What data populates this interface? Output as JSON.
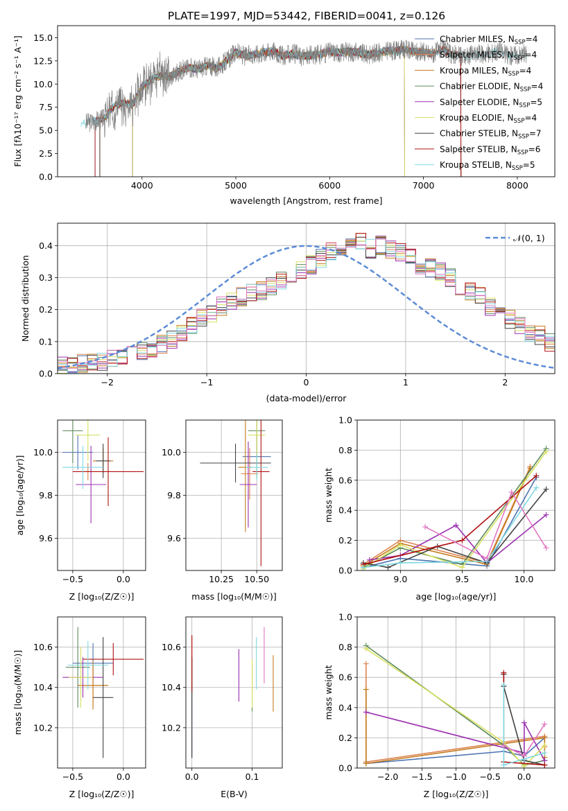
{
  "figure_title": "PLATE=1997, MJD=53442, FIBERID=0041, z=0.126",
  "palette": [
    "#4c72b0",
    "#dd8452",
    "#c47a1a",
    "#5b8a5b",
    "#9b30b0",
    "#d8e060",
    "#404040",
    "#b01010",
    "#7fd8e0"
  ],
  "chart_data": [
    {
      "id": "spectrum",
      "type": "line",
      "title": "PLATE=1997, MJD=53442, FIBERID=0041, z=0.126",
      "xlabel": "wavelength [Angstrom, rest frame]",
      "ylabel": "Flux [f$_\\lambda$10$^{-17}$ erg cm$^{-2}$ s$^{-1}$ A$^{-1}$]",
      "ylabel_display": "Flux [fλ10⁻¹⁷ erg cm⁻² s⁻¹ A⁻¹]",
      "xlim": [
        3100,
        8400
      ],
      "ylim": [
        0,
        16.3
      ],
      "xticks": [
        4000,
        5000,
        6000,
        7000,
        8000
      ],
      "yticks": [
        0.0,
        2.5,
        5.0,
        7.5,
        10.0,
        12.5,
        15.0
      ],
      "ytick_labels": [
        "0.0",
        "2.5",
        "5.0",
        "7.5",
        "10.0",
        "12.5",
        "15.0"
      ],
      "grid": false,
      "legend_position": "upper-right",
      "data_series": {
        "name": "data",
        "color": "#808080",
        "x": [
          3400,
          3500,
          3600,
          3700,
          3800,
          3900,
          4000,
          4100,
          4200,
          4300,
          4400,
          4500,
          4600,
          4700,
          4800,
          4900,
          5000,
          5100,
          5200,
          5300,
          5400,
          5500,
          5600,
          5700,
          5800,
          5900,
          6000,
          6100,
          6200,
          6300,
          6400,
          6500,
          6600,
          6700,
          6800,
          6900,
          7000,
          7100,
          7200,
          7300,
          7400,
          7500,
          7600,
          7700,
          7800,
          7900,
          8000,
          8100
        ],
        "y": [
          5.8,
          6.0,
          6.3,
          7.6,
          8.0,
          7.8,
          9.7,
          10.5,
          10.9,
          10.8,
          11.4,
          11.8,
          11.6,
          12.0,
          11.7,
          12.5,
          13.4,
          13.0,
          13.2,
          13.4,
          13.6,
          13.0,
          13.3,
          13.0,
          13.1,
          13.2,
          13.5,
          13.4,
          13.5,
          13.4,
          13.2,
          13.3,
          13.5,
          13.6,
          13.7,
          13.5,
          13.4,
          13.3,
          13.8,
          13.2,
          13.0,
          13.1,
          13.2,
          13.3,
          13.6,
          13.1,
          13.2,
          13.2
        ]
      },
      "series": [
        {
          "name": "Chabrier MILES, N$_{SSP}$=4",
          "label": "Chabrier MILES, N",
          "sub": "SSP",
          "tail": "=4",
          "color": "#4c72b0",
          "range": [
            3500,
            7400
          ]
        },
        {
          "name": "Salpeter MILES, N$_{SSP}$=4",
          "label": "Salpeter MILES, N",
          "sub": "SSP",
          "tail": "=4",
          "color": "#dd8452",
          "range": [
            3550,
            7400
          ]
        },
        {
          "name": "Kroupa MILES, N$_{SSP}$=4",
          "label": "Kroupa MILES, N",
          "sub": "SSP",
          "tail": "=4",
          "color": "#c47a1a",
          "range": [
            3550,
            7400
          ]
        },
        {
          "name": "Chabrier ELODIE, N$_{SSP}$=4",
          "label": "Chabrier ELODIE, N",
          "sub": "SSP",
          "tail": "=4",
          "color": "#5b8a5b",
          "range": [
            3900,
            6800
          ]
        },
        {
          "name": "Salpeter ELODIE, N$_{SSP}$=5",
          "label": "Salpeter ELODIE, N",
          "sub": "SSP",
          "tail": "=5",
          "color": "#9b30b0",
          "range": [
            3900,
            6800
          ]
        },
        {
          "name": "Kroupa ELODIE, N$_{SSP}$=4",
          "label": "Kroupa ELODIE, N",
          "sub": "SSP",
          "tail": "=4",
          "color": "#d8e060",
          "range": [
            3900,
            6800
          ]
        },
        {
          "name": "Chabrier STELIB, N$_{SSP}$=7",
          "label": "Chabrier STELIB, N",
          "sub": "SSP",
          "tail": "=7",
          "color": "#404040",
          "range": [
            3550,
            7400
          ]
        },
        {
          "name": "Salpeter STELIB, N$_{SSP}$=6",
          "label": "Salpeter STELIB, N",
          "sub": "SSP",
          "tail": "=6",
          "color": "#b01010",
          "range": [
            3500,
            7400
          ]
        },
        {
          "name": "Kroupa STELIB, N$_{SSP}$=5",
          "label": "Kroupa STELIB, N",
          "sub": "SSP",
          "tail": "=5",
          "color": "#7fd8e0",
          "range": [
            3350,
            8100
          ]
        }
      ]
    },
    {
      "id": "residuals",
      "type": "line",
      "xlabel": "(data-model)/error",
      "ylabel": "Normed distribution",
      "xlim": [
        -2.5,
        2.5
      ],
      "ylim": [
        0,
        0.47
      ],
      "xticks": [
        -2,
        -1,
        0,
        1,
        2
      ],
      "xtick_labels": [
        "−2",
        "−1",
        "0",
        "1",
        "2"
      ],
      "yticks": [
        0.0,
        0.1,
        0.2,
        0.3,
        0.4
      ],
      "ytick_labels": [
        "0.0",
        "0.1",
        "0.2",
        "0.3",
        "0.4"
      ],
      "grid": true,
      "legend_position": "upper-right",
      "reference_curve": {
        "name": "$\\mathcal{N}(0,1)$",
        "label_display": "𝒩(0, 1)",
        "color": "#5b8bd6",
        "style": "dashed"
      },
      "bin_edges_min": -2.5,
      "bin_width": 0.1,
      "base_histogram": [
        0.03,
        0.028,
        0.032,
        0.035,
        0.038,
        0.045,
        0.05,
        0.058,
        0.068,
        0.08,
        0.09,
        0.108,
        0.128,
        0.15,
        0.175,
        0.19,
        0.21,
        0.23,
        0.24,
        0.25,
        0.26,
        0.27,
        0.29,
        0.31,
        0.32,
        0.34,
        0.36,
        0.38,
        0.38,
        0.4,
        0.41,
        0.39,
        0.4,
        0.39,
        0.38,
        0.36,
        0.34,
        0.33,
        0.32,
        0.3,
        0.27,
        0.26,
        0.24,
        0.21,
        0.19,
        0.17,
        0.15,
        0.13,
        0.12,
        0.1,
        0.09,
        0.08,
        0.07,
        0.065,
        0.055,
        0.05,
        0.04,
        0.035,
        0.03,
        0.025
      ]
    },
    {
      "id": "age_vs_Z",
      "type": "scatter",
      "xlabel": "Z [log$_{10}$(Z/Z$_\\odot$)]",
      "xlabel_display": "Z [log₁₀(Z/Z☉)]",
      "ylabel": "age  [log$_{10}$(age/yr)]",
      "ylabel_display": "age  [log₁₀(age/yr)]",
      "xlim": [
        -0.65,
        0.22
      ],
      "ylim": [
        9.45,
        10.15
      ],
      "xticks": [
        -0.5,
        0.0
      ],
      "xtick_labels": [
        "−0.5",
        "0.0"
      ],
      "yticks": [
        9.6,
        9.8,
        10.0
      ],
      "ytick_labels": [
        "9.6",
        "9.8",
        "10.0"
      ],
      "grid": true,
      "errorbars": [
        {
          "x": -0.45,
          "xerr": 0.15,
          "y": 10.0,
          "yerr": 0.08
        },
        {
          "x": -0.35,
          "xerr": 0.12,
          "y": 9.91,
          "yerr": 0.04
        },
        {
          "x": -0.2,
          "xerr": 0.1,
          "y": 9.96,
          "yerr": 0.06
        },
        {
          "x": -0.5,
          "xerr": 0.1,
          "y": 10.1,
          "yerr": 0.15
        },
        {
          "x": -0.32,
          "xerr": 0.15,
          "y": 9.85,
          "yerr": 0.18
        },
        {
          "x": -0.35,
          "xerr": 0.12,
          "y": 10.08,
          "yerr": 0.12
        },
        {
          "x": -0.2,
          "xerr": 0.07,
          "y": 9.96,
          "yerr": 0.08
        },
        {
          "x": -0.15,
          "xerr": 0.35,
          "y": 9.91,
          "yerr": 0.16
        },
        {
          "x": -0.4,
          "xerr": 0.2,
          "y": 9.93,
          "yerr": 0.1
        }
      ]
    },
    {
      "id": "age_vs_mass",
      "type": "scatter",
      "xlabel": "mass [log$_{10}$(M/M$_\\odot$)]",
      "xlabel_display": "mass [log₁₀(M/M☉)]",
      "xlim": [
        10.0,
        10.68
      ],
      "ylim": [
        9.45,
        10.15
      ],
      "xticks": [
        10.25,
        10.5
      ],
      "xtick_labels": [
        "10.25",
        "10.50"
      ],
      "yticks": [
        9.6,
        9.8,
        10.0
      ],
      "ytick_labels": [
        "9.6",
        "9.8",
        "10.0"
      ],
      "grid": true,
      "errorbars": [
        {
          "x": 10.5,
          "xerr": 0.1,
          "y": 9.98,
          "yerr": 0.1
        },
        {
          "x": 10.45,
          "xerr": 0.06,
          "y": 9.9,
          "yerr": 0.12
        },
        {
          "x": 10.42,
          "xerr": 0.05,
          "y": 9.93,
          "yerr": 0.3
        },
        {
          "x": 10.5,
          "xerr": 0.06,
          "y": 10.1,
          "yerr": 0.09
        },
        {
          "x": 10.44,
          "xerr": 0.06,
          "y": 9.85,
          "yerr": 0.2
        },
        {
          "x": 10.5,
          "xerr": 0.06,
          "y": 10.08,
          "yerr": 0.2
        },
        {
          "x": 10.35,
          "xerr": 0.25,
          "y": 9.95,
          "yerr": 0.09
        },
        {
          "x": 10.53,
          "xerr": 0.06,
          "y": 9.91,
          "yerr": 0.44
        },
        {
          "x": 10.5,
          "xerr": 0.08,
          "y": 9.93,
          "yerr": 0.06
        }
      ]
    },
    {
      "id": "weight_vs_age",
      "type": "line",
      "xlabel": "age  [log$_{10}$(age/yr)]",
      "xlabel_display": "age  [log₁₀(age/yr)]",
      "ylabel": "mass weight",
      "xlim": [
        8.65,
        10.25
      ],
      "ylim": [
        0,
        1.0
      ],
      "xticks": [
        9.0,
        9.5,
        10.0
      ],
      "xtick_labels": [
        "9.0",
        "9.5",
        "10.0"
      ],
      "yticks": [
        0.0,
        0.2,
        0.4,
        0.6,
        0.8,
        1.0
      ],
      "ytick_labels": [
        "0.0",
        "0.2",
        "0.4",
        "0.6",
        "0.8",
        "1.0"
      ],
      "grid": true,
      "series": [
        {
          "color": "#4c72b0",
          "x": [
            8.7,
            9.0,
            9.7,
            10.1
          ],
          "y": [
            0.02,
            0.08,
            0.03,
            0.62
          ]
        },
        {
          "color": "#dd8452",
          "x": [
            8.7,
            9.0,
            9.7,
            10.05
          ],
          "y": [
            0.04,
            0.2,
            0.05,
            0.69
          ]
        },
        {
          "color": "#c47a1a",
          "x": [
            8.7,
            9.0,
            9.7,
            10.05
          ],
          "y": [
            0.03,
            0.18,
            0.04,
            0.68
          ]
        },
        {
          "color": "#5b8a5b",
          "x": [
            8.7,
            9.0,
            9.5,
            10.18
          ],
          "y": [
            0.02,
            0.15,
            0.04,
            0.81
          ]
        },
        {
          "color": "#9b30b0",
          "x": [
            8.75,
            9.0,
            9.45,
            9.7,
            10.18
          ],
          "y": [
            0.07,
            0.1,
            0.3,
            0.05,
            0.37
          ]
        },
        {
          "color": "#d8e060",
          "x": [
            8.7,
            9.0,
            9.5,
            10.18
          ],
          "y": [
            0.01,
            0.17,
            0.02,
            0.79
          ]
        },
        {
          "color": "#404040",
          "x": [
            8.7,
            8.9,
            9.3,
            9.7,
            10.18
          ],
          "y": [
            0.05,
            0.02,
            0.16,
            0.05,
            0.54
          ]
        },
        {
          "color": "#b01010",
          "x": [
            8.7,
            9.5,
            10.1
          ],
          "y": [
            0.04,
            0.2,
            0.63
          ]
        },
        {
          "color": "#7fd8e0",
          "x": [
            8.7,
            9.0,
            9.7,
            10.1
          ],
          "y": [
            0.02,
            0.05,
            0.06,
            0.55
          ]
        },
        {
          "color": "#e377c2",
          "x": [
            9.2,
            9.7,
            9.9,
            10.18
          ],
          "y": [
            0.29,
            0.08,
            0.52,
            0.15
          ]
        }
      ]
    },
    {
      "id": "mass_vs_Z",
      "type": "scatter",
      "xlabel": "Z [log$_{10}$(Z/Z$_\\odot$)]",
      "xlabel_display": "Z [log₁₀(Z/Z☉)]",
      "ylabel": "mass [log$_{10}$(M/M$_\\odot$)]",
      "ylabel_display": "mass [log₁₀(M/M☉)]",
      "xlim": [
        -0.65,
        0.22
      ],
      "ylim": [
        10.0,
        10.75
      ],
      "xticks": [
        -0.5,
        0.0
      ],
      "xtick_labels": [
        "−0.5",
        "0.0"
      ],
      "yticks": [
        10.2,
        10.4,
        10.6
      ],
      "ytick_labels": [
        "10.2",
        "10.4",
        "10.6"
      ],
      "grid": true,
      "errorbars": [
        {
          "x": -0.3,
          "xerr": 0.2,
          "y": 10.52,
          "yerr": 0.1
        },
        {
          "x": -0.3,
          "xerr": 0.15,
          "y": 10.41,
          "yerr": 0.1
        },
        {
          "x": -0.3,
          "xerr": 0.15,
          "y": 10.41,
          "yerr": 0.12
        },
        {
          "x": -0.45,
          "xerr": 0.12,
          "y": 10.5,
          "yerr": 0.2
        },
        {
          "x": -0.4,
          "xerr": 0.2,
          "y": 10.45,
          "yerr": 0.1
        },
        {
          "x": -0.42,
          "xerr": 0.12,
          "y": 10.45,
          "yerr": 0.15
        },
        {
          "x": -0.2,
          "xerr": 0.1,
          "y": 10.35,
          "yerr": 0.3
        },
        {
          "x": -0.1,
          "xerr": 0.3,
          "y": 10.54,
          "yerr": 0.08
        },
        {
          "x": -0.35,
          "xerr": 0.2,
          "y": 10.51,
          "yerr": 0.12
        }
      ]
    },
    {
      "id": "mass_vs_EBV",
      "type": "scatter",
      "xlabel": "E(B-V)",
      "xlim": [
        -0.01,
        0.15
      ],
      "ylim": [
        10.0,
        10.75
      ],
      "xticks": [
        0.0,
        0.1
      ],
      "xtick_labels": [
        "0.0",
        "0.1"
      ],
      "yticks": [
        10.2,
        10.4,
        10.6
      ],
      "ytick_labels": [
        "10.2",
        "10.4",
        "10.6"
      ],
      "grid": true,
      "errorbars": [
        {
          "x": 0.0,
          "xerr": 0.0,
          "y": 10.3,
          "yerr": 0.25
        },
        {
          "x": 0.0,
          "xerr": 0.0,
          "y": 10.5,
          "yerr": 0.15
        },
        {
          "x": 0.135,
          "xerr": 0.0,
          "y": 10.42,
          "yerr": 0.14
        },
        {
          "x": 0.1,
          "xerr": 0.0,
          "y": 10.4,
          "yerr": 0.12
        },
        {
          "x": 0.078,
          "xerr": 0.0,
          "y": 10.46,
          "yerr": 0.13
        },
        {
          "x": 0.1,
          "xerr": 0.0,
          "y": 10.42,
          "yerr": 0.12
        },
        {
          "x": 0.0,
          "xerr": 0.0,
          "y": 10.3,
          "yerr": 0.25
        },
        {
          "x": 0.0,
          "xerr": 0.0,
          "y": 10.52,
          "yerr": 0.14
        },
        {
          "x": 0.107,
          "xerr": 0.0,
          "y": 10.52,
          "yerr": 0.13
        },
        {
          "x": 0.12,
          "xerr": 0.0,
          "y": 10.56,
          "yerr": 0.14
        }
      ]
    },
    {
      "id": "weight_vs_Z",
      "type": "line",
      "xlabel": "Z [log$_{10}$(Z/Z$_\\odot$)]",
      "xlabel_display": "Z [log₁₀(Z/Z☉)]",
      "ylabel": "mass weight",
      "xlim": [
        -2.45,
        0.45
      ],
      "ylim": [
        0,
        1.0
      ],
      "xticks": [
        -2.0,
        -1.5,
        -1.0,
        -0.5,
        0.0
      ],
      "xtick_labels": [
        "−2.0",
        "−1.5",
        "−1.0",
        "−0.5",
        "0.0"
      ],
      "yticks": [
        0.0,
        0.2,
        0.4,
        0.6,
        0.8,
        1.0
      ],
      "ytick_labels": [
        "0.0",
        "0.2",
        "0.4",
        "0.6",
        "0.8",
        "1.0"
      ],
      "grid": true,
      "series": [
        {
          "color": "#4c72b0",
          "x": [
            -2.32,
            -0.3,
            0.0,
            0.3
          ],
          "y": [
            0.03,
            0.11,
            0.08,
            0.2
          ]
        },
        {
          "color": "#dd8452",
          "x": [
            -2.32,
            -2.32,
            0.3,
            0.3
          ],
          "y": [
            0.69,
            0.04,
            0.21,
            0.14
          ]
        },
        {
          "color": "#c47a1a",
          "x": [
            -2.32,
            -2.32,
            0.3,
            0.3
          ],
          "y": [
            0.52,
            0.03,
            0.2,
            0.07
          ]
        },
        {
          "color": "#5b8a5b",
          "x": [
            -2.32,
            -0.3,
            0.0,
            0.3
          ],
          "y": [
            0.81,
            0.15,
            0.02,
            0.05
          ]
        },
        {
          "color": "#9b30b0",
          "x": [
            -2.32,
            0.0,
            0.0,
            0.3
          ],
          "y": [
            0.37,
            0.1,
            0.3,
            0.05
          ]
        },
        {
          "color": "#d8e060",
          "x": [
            -2.32,
            -0.3,
            0.0,
            0.3
          ],
          "y": [
            0.79,
            0.17,
            0.01,
            0.15
          ]
        },
        {
          "color": "#404040",
          "x": [
            -0.3,
            -0.3,
            0.0,
            0.3
          ],
          "y": [
            0.62,
            0.54,
            0.05,
            0.02
          ]
        },
        {
          "color": "#b01010",
          "x": [
            -0.3,
            -0.3,
            0.3
          ],
          "y": [
            0.63,
            0.04,
            0.02
          ]
        },
        {
          "color": "#7fd8e0",
          "x": [
            -0.3,
            -0.3,
            0.0,
            0.3
          ],
          "y": [
            0.55,
            0.02,
            0.06,
            0.1
          ]
        },
        {
          "color": "#e377c2",
          "x": [
            -0.3,
            0.0,
            0.3
          ],
          "y": [
            0.15,
            0.08,
            0.29
          ]
        }
      ]
    }
  ]
}
